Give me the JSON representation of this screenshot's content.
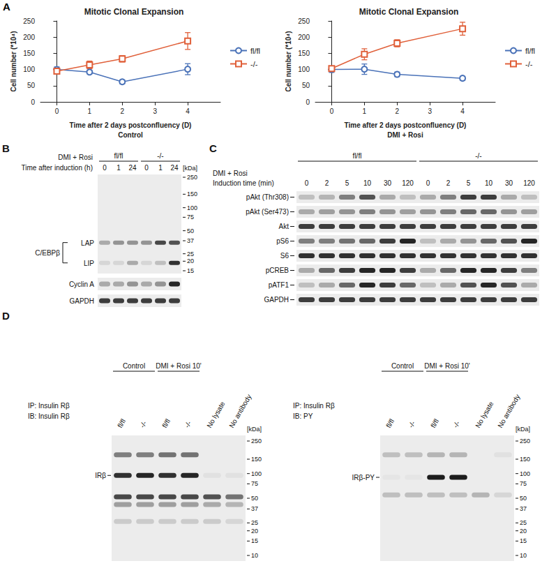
{
  "panel_letter": "A",
  "chart_data": [
    {
      "type": "line",
      "title": "Mitotic Clonal Expansion",
      "xlabel": "Time after 2 days postconfluency (D)",
      "condition": "Control",
      "ylabel": "Cell number (*10⁴)",
      "x": [
        0,
        1,
        2,
        4
      ],
      "xlim": [
        -0.5,
        5
      ],
      "xticks": [
        0,
        1,
        2,
        3,
        4
      ],
      "ylim": [
        0,
        250
      ],
      "yticks": [
        0,
        50,
        100,
        150,
        200,
        250
      ],
      "grid": false,
      "legend": "right",
      "series": [
        {
          "name": "fl/fl",
          "color": "#4a72b8",
          "marker": "circle",
          "values": [
            100,
            92,
            62,
            101
          ],
          "errors": [
            8,
            5,
            6,
            17
          ]
        },
        {
          "name": "-/-",
          "color": "#e0603a",
          "marker": "square",
          "values": [
            95,
            114,
            133,
            188
          ],
          "errors": [
            7,
            12,
            10,
            26
          ]
        }
      ]
    },
    {
      "type": "line",
      "title": "Mitotic Clonal Expansion",
      "xlabel": "Time after 2 days postconfluency (D)",
      "condition": "DMI + Rosi",
      "ylabel": "Cell number (*10⁴)",
      "x": [
        0,
        1,
        2,
        4
      ],
      "xlim": [
        -0.5,
        5
      ],
      "xticks": [
        0,
        1,
        2,
        3,
        4
      ],
      "ylim": [
        0,
        250
      ],
      "yticks": [
        0,
        50,
        100,
        150,
        200,
        250
      ],
      "grid": false,
      "legend": "right",
      "series": [
        {
          "name": "fl/fl",
          "color": "#4a72b8",
          "marker": "circle",
          "values": [
            100,
            101,
            85,
            73
          ],
          "errors": [
            9,
            16,
            7,
            6
          ]
        },
        {
          "name": "-/-",
          "color": "#e0603a",
          "marker": "square",
          "values": [
            103,
            147,
            181,
            226
          ],
          "errors": [
            5,
            17,
            11,
            20
          ]
        }
      ]
    }
  ],
  "blot_B": {
    "letter": "B",
    "condition": "DMI + Rosi",
    "axis_label": "Time after induction (h)",
    "groups": [
      {
        "name": "fl/fl",
        "lanes": [
          "0",
          "1",
          "24"
        ]
      },
      {
        "name": "-/-",
        "lanes": [
          "0",
          "1",
          "24"
        ]
      }
    ],
    "kda_label": "[kDa]",
    "kda_ticks": [
      250,
      150,
      100,
      75,
      50,
      37,
      25,
      20,
      15
    ],
    "bracket_label": "C/EBPβ",
    "main_bands": [
      {
        "label": "LAP",
        "kda": 35,
        "intensity": [
          0.3,
          0.4,
          0.4,
          0.4,
          0.75,
          0.7
        ]
      },
      {
        "label": "LIP",
        "kda": 19,
        "intensity": [
          0.1,
          0.1,
          0.3,
          0.1,
          0.2,
          0.85
        ]
      }
    ],
    "strips": [
      {
        "label": "Cyclin A",
        "intensity": [
          0.3,
          0.3,
          0.4,
          0.3,
          0.4,
          0.9
        ]
      },
      {
        "label": "GAPDH",
        "intensity": [
          0.8,
          0.8,
          0.8,
          0.8,
          0.8,
          0.8
        ]
      }
    ]
  },
  "blot_C": {
    "letter": "C",
    "condition": "DMI + Rosi",
    "axis_label": "Induction time (min)",
    "groups": [
      {
        "name": "fl/fl",
        "lanes": [
          "0",
          "2",
          "5",
          "10",
          "30",
          "120"
        ]
      },
      {
        "name": "-/-",
        "lanes": [
          "0",
          "2",
          "5",
          "10",
          "30",
          "120"
        ]
      }
    ],
    "strips": [
      {
        "label": "pAkt (Thr308)",
        "intensity": [
          0.2,
          0.25,
          0.5,
          0.7,
          0.3,
          0.2,
          0.3,
          0.5,
          0.8,
          0.8,
          0.3,
          0.2
        ]
      },
      {
        "label": "pAkt (Ser473)",
        "intensity": [
          0.3,
          0.35,
          0.4,
          0.5,
          0.4,
          0.35,
          0.4,
          0.5,
          0.6,
          0.6,
          0.4,
          0.35
        ]
      },
      {
        "label": "Akt",
        "intensity": [
          0.8,
          0.8,
          0.8,
          0.8,
          0.8,
          0.8,
          0.8,
          0.8,
          0.8,
          0.8,
          0.8,
          0.8
        ]
      },
      {
        "label": "pS6",
        "intensity": [
          0.5,
          0.5,
          0.55,
          0.6,
          0.8,
          0.9,
          0.2,
          0.3,
          0.4,
          0.6,
          0.7,
          0.9
        ]
      },
      {
        "label": "S6",
        "intensity": [
          0.85,
          0.85,
          0.85,
          0.85,
          0.85,
          0.85,
          0.85,
          0.85,
          0.85,
          0.85,
          0.85,
          0.85
        ]
      },
      {
        "label": "pCREB",
        "intensity": [
          0.3,
          0.6,
          0.8,
          0.9,
          0.9,
          0.8,
          0.3,
          0.6,
          0.9,
          0.9,
          0.8,
          0.5
        ]
      },
      {
        "label": "pATF1",
        "intensity": [
          0.2,
          0.3,
          0.6,
          0.9,
          0.8,
          0.6,
          0.2,
          0.3,
          0.7,
          0.9,
          0.7,
          0.3
        ]
      },
      {
        "label": "GAPDH",
        "intensity": [
          0.8,
          0.8,
          0.8,
          0.8,
          0.8,
          0.8,
          0.8,
          0.8,
          0.8,
          0.8,
          0.8,
          0.8
        ]
      }
    ]
  },
  "blot_D": {
    "letter": "D",
    "blots": [
      {
        "ip": "IP: Insulin Rβ",
        "ib": "IB: Insulin Rβ",
        "groups": [
          {
            "name": "Control",
            "lanes": [
              "fl/fl",
              "-/-"
            ]
          },
          {
            "name": "DMI + Rosi 10'",
            "lanes": [
              "fl/fl",
              "-/-"
            ]
          },
          {
            "name": null,
            "lanes": [
              "No lysate"
            ]
          },
          {
            "name": null,
            "lanes": [
              "No antibody"
            ]
          }
        ],
        "kda_label": "[kDa]",
        "kda_ticks": [
          250,
          150,
          100,
          75,
          50,
          37,
          25,
          20,
          15,
          10
        ],
        "bands": [
          {
            "label": null,
            "kda": 170,
            "intensity": [
              0.5,
              0.5,
              0.55,
              0.55,
              0,
              0
            ]
          },
          {
            "label": "IRβ",
            "kda": 95,
            "intensity": [
              0.85,
              0.9,
              0.85,
              0.9,
              0.05,
              0.05
            ]
          },
          {
            "label": null,
            "kda": 52,
            "intensity": [
              0.75,
              0.75,
              0.75,
              0.75,
              0.7,
              0.55
            ]
          },
          {
            "label": null,
            "kda": 42,
            "intensity": [
              0.35,
              0.35,
              0.35,
              0.35,
              0.3,
              0.25
            ]
          },
          {
            "label": null,
            "kda": 26,
            "intensity": [
              0.15,
              0.15,
              0.15,
              0.15,
              0.15,
              0.1
            ]
          }
        ]
      },
      {
        "ip": "IP: Insulin Rβ",
        "ib": "IB: PY",
        "groups": [
          {
            "name": "Control",
            "lanes": [
              "fl/fl",
              "-/-"
            ]
          },
          {
            "name": "DMI + Rosi 10'",
            "lanes": [
              "fl/fl",
              "-/-"
            ]
          },
          {
            "name": null,
            "lanes": [
              "No lysate"
            ]
          },
          {
            "name": null,
            "lanes": [
              "No antibody"
            ]
          }
        ],
        "kda_label": "[kDa]",
        "kda_ticks": [
          250,
          150,
          100,
          75,
          50,
          37,
          25,
          20,
          15,
          10
        ],
        "bands": [
          {
            "label": null,
            "kda": 170,
            "intensity": [
              0.2,
              0.2,
              0.25,
              0.25,
              0,
              0.05
            ]
          },
          {
            "label": "IRβ-PY",
            "kda": 90,
            "intensity": [
              0.03,
              0.03,
              0.95,
              0.95,
              0,
              0
            ]
          },
          {
            "label": null,
            "kda": 55,
            "intensity": [
              0.2,
              0.2,
              0.2,
              0.2,
              0.25,
              0.1
            ]
          }
        ]
      }
    ]
  }
}
